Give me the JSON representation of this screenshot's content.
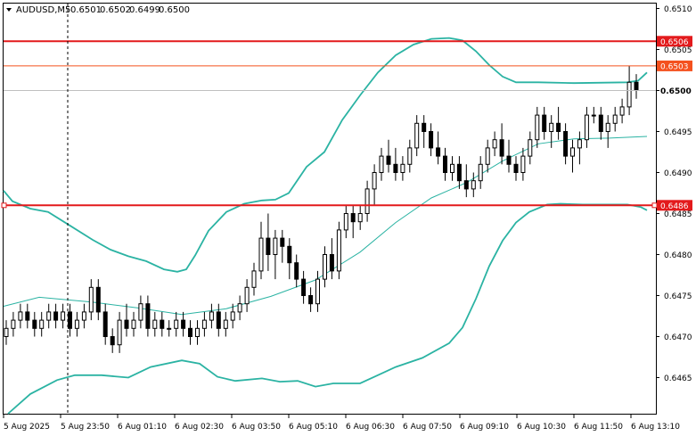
{
  "header": {
    "symbol": "AUDUSD,M5",
    "open": "0.6501",
    "high": "0.6502",
    "low": "0.6499",
    "close": "0.6500"
  },
  "chart_data": {
    "type": "candlestick",
    "symbol": "AUDUSD",
    "timeframe": "M5",
    "ylim": [
      0.64606,
      0.65106
    ],
    "y_ticks": [
      "0.6510",
      "0.6505",
      "0.6500",
      "0.6495",
      "0.6490",
      "0.6485",
      "0.6480",
      "0.6475",
      "0.6470",
      "0.6465"
    ],
    "x_ticks": [
      "5 Aug 2025",
      "5 Aug 23:50",
      "6 Aug 01:10",
      "6 Aug 02:30",
      "6 Aug 03:50",
      "6 Aug 05:10",
      "6 Aug 06:30",
      "6 Aug 07:50",
      "6 Aug 09:10",
      "6 Aug 10:30",
      "6 Aug 11:50",
      "6 Aug 13:10"
    ],
    "horizontal_levels": [
      {
        "label": "0.6506",
        "value": 0.6506,
        "color": "#e31a1c",
        "style": "thick"
      },
      {
        "label": "0.6503",
        "value": 0.6503,
        "color": "#f4511e",
        "style": "thin"
      },
      {
        "label": "0.6486",
        "value": 0.6486,
        "color": "#e31a1c",
        "style": "thick"
      }
    ],
    "current_price": {
      "label": "0.6500",
      "value": 0.65
    },
    "vertical_marker": "5 Aug 23:50",
    "indicators": [
      "Bollinger Bands (upper, middle, lower)"
    ],
    "bollinger_upper": [
      [
        0,
        0.64878
      ],
      [
        10,
        0.64865
      ],
      [
        30,
        0.64856
      ],
      [
        50,
        0.64852
      ],
      [
        75,
        0.64835
      ],
      [
        100,
        0.64818
      ],
      [
        120,
        0.64806
      ],
      [
        140,
        0.64798
      ],
      [
        160,
        0.64792
      ],
      [
        180,
        0.64782
      ],
      [
        195,
        0.64779
      ],
      [
        205,
        0.64782
      ],
      [
        215,
        0.64799
      ],
      [
        230,
        0.64829
      ],
      [
        250,
        0.64852
      ],
      [
        270,
        0.64862
      ],
      [
        290,
        0.64866
      ],
      [
        305,
        0.64867
      ],
      [
        320,
        0.64875
      ],
      [
        340,
        0.64907
      ],
      [
        360,
        0.64925
      ],
      [
        380,
        0.64964
      ],
      [
        400,
        0.64994
      ],
      [
        420,
        0.65022
      ],
      [
        440,
        0.65043
      ],
      [
        460,
        0.65056
      ],
      [
        480,
        0.65063
      ],
      [
        500,
        0.65064
      ],
      [
        515,
        0.65061
      ],
      [
        530,
        0.65048
      ],
      [
        545,
        0.65031
      ],
      [
        560,
        0.65017
      ],
      [
        575,
        0.6501
      ],
      [
        600,
        0.6501
      ],
      [
        640,
        0.65009
      ],
      [
        700,
        0.6501
      ],
      [
        712,
        0.65012
      ],
      [
        722,
        0.65022
      ]
    ],
    "bollinger_middle": [
      [
        0,
        0.64737
      ],
      [
        40,
        0.64748
      ],
      [
        100,
        0.64742
      ],
      [
        150,
        0.64735
      ],
      [
        200,
        0.64727
      ],
      [
        250,
        0.64734
      ],
      [
        300,
        0.64749
      ],
      [
        350,
        0.64769
      ],
      [
        400,
        0.64803
      ],
      [
        440,
        0.64839
      ],
      [
        480,
        0.64869
      ],
      [
        520,
        0.64888
      ],
      [
        560,
        0.64914
      ],
      [
        600,
        0.64935
      ],
      [
        640,
        0.64941
      ],
      [
        680,
        0.64942
      ],
      [
        722,
        0.64944
      ]
    ],
    "bollinger_lower": [
      [
        5,
        0.64606
      ],
      [
        30,
        0.6463
      ],
      [
        60,
        0.64647
      ],
      [
        80,
        0.64653
      ],
      [
        110,
        0.64653
      ],
      [
        140,
        0.6465
      ],
      [
        165,
        0.64663
      ],
      [
        200,
        0.64671
      ],
      [
        220,
        0.64667
      ],
      [
        240,
        0.64651
      ],
      [
        260,
        0.64646
      ],
      [
        290,
        0.64649
      ],
      [
        310,
        0.64645
      ],
      [
        330,
        0.64646
      ],
      [
        350,
        0.64639
      ],
      [
        370,
        0.64643
      ],
      [
        400,
        0.64643
      ],
      [
        420,
        0.64653
      ],
      [
        440,
        0.64663
      ],
      [
        470,
        0.64674
      ],
      [
        500,
        0.64692
      ],
      [
        515,
        0.64711
      ],
      [
        530,
        0.64746
      ],
      [
        545,
        0.64786
      ],
      [
        560,
        0.64817
      ],
      [
        575,
        0.64839
      ],
      [
        590,
        0.64852
      ],
      [
        610,
        0.64861
      ],
      [
        625,
        0.64862
      ],
      [
        650,
        0.64861
      ],
      [
        700,
        0.64861
      ],
      [
        715,
        0.64858
      ],
      [
        722,
        0.64854
      ]
    ],
    "candles": [
      [
        0.647,
        0.6472,
        0.6469,
        0.6471
      ],
      [
        0.6471,
        0.6473,
        0.647,
        0.6472
      ],
      [
        0.6472,
        0.6474,
        0.6471,
        0.6473
      ],
      [
        0.6473,
        0.6474,
        0.6471,
        0.6472
      ],
      [
        0.6472,
        0.6473,
        0.647,
        0.6471
      ],
      [
        0.6471,
        0.6473,
        0.647,
        0.6472
      ],
      [
        0.6472,
        0.6474,
        0.6471,
        0.6473
      ],
      [
        0.6473,
        0.6474,
        0.6471,
        0.6472
      ],
      [
        0.6472,
        0.6474,
        0.6471,
        0.6473
      ],
      [
        0.6473,
        0.6474,
        0.647,
        0.6471
      ],
      [
        0.6471,
        0.6473,
        0.647,
        0.6472
      ],
      [
        0.6472,
        0.6474,
        0.6471,
        0.6473
      ],
      [
        0.6473,
        0.6477,
        0.6472,
        0.6476
      ],
      [
        0.6476,
        0.6477,
        0.6472,
        0.6473
      ],
      [
        0.6473,
        0.6474,
        0.6469,
        0.647
      ],
      [
        0.647,
        0.6471,
        0.6468,
        0.6469
      ],
      [
        0.6469,
        0.6473,
        0.6468,
        0.6472
      ],
      [
        0.6472,
        0.6474,
        0.647,
        0.6471
      ],
      [
        0.6471,
        0.6473,
        0.647,
        0.6472
      ],
      [
        0.6472,
        0.6475,
        0.6471,
        0.6474
      ],
      [
        0.6474,
        0.6475,
        0.647,
        0.6471
      ],
      [
        0.6471,
        0.6473,
        0.647,
        0.6472
      ],
      [
        0.6472,
        0.6473,
        0.647,
        0.6471
      ],
      [
        0.6471,
        0.6472,
        0.647,
        0.6471
      ],
      [
        0.6471,
        0.6473,
        0.647,
        0.6472
      ],
      [
        0.6472,
        0.6473,
        0.647,
        0.6471
      ],
      [
        0.6471,
        0.6472,
        0.6469,
        0.647
      ],
      [
        0.647,
        0.6472,
        0.6469,
        0.6471
      ],
      [
        0.6471,
        0.6473,
        0.647,
        0.6472
      ],
      [
        0.6472,
        0.6474,
        0.6471,
        0.6473
      ],
      [
        0.6473,
        0.6474,
        0.647,
        0.6471
      ],
      [
        0.6471,
        0.6473,
        0.647,
        0.6472
      ],
      [
        0.6472,
        0.6474,
        0.6471,
        0.6473
      ],
      [
        0.6473,
        0.6475,
        0.6472,
        0.6474
      ],
      [
        0.6474,
        0.6477,
        0.6473,
        0.6476
      ],
      [
        0.6476,
        0.6479,
        0.6475,
        0.6478
      ],
      [
        0.6478,
        0.6484,
        0.6477,
        0.6482
      ],
      [
        0.6482,
        0.6485,
        0.6478,
        0.648
      ],
      [
        0.648,
        0.6483,
        0.6477,
        0.6482
      ],
      [
        0.6482,
        0.6483,
        0.6479,
        0.6481
      ],
      [
        0.6481,
        0.6482,
        0.6477,
        0.6479
      ],
      [
        0.6479,
        0.648,
        0.6476,
        0.6477
      ],
      [
        0.6477,
        0.6478,
        0.6474,
        0.6475
      ],
      [
        0.6475,
        0.6476,
        0.6473,
        0.6474
      ],
      [
        0.6474,
        0.6478,
        0.6473,
        0.6477
      ],
      [
        0.6477,
        0.6481,
        0.6476,
        0.648
      ],
      [
        0.648,
        0.6482,
        0.6477,
        0.6478
      ],
      [
        0.6478,
        0.6484,
        0.6477,
        0.6483
      ],
      [
        0.6483,
        0.6486,
        0.6482,
        0.6485
      ],
      [
        0.6485,
        0.6486,
        0.6482,
        0.6484
      ],
      [
        0.6484,
        0.6486,
        0.6483,
        0.6485
      ],
      [
        0.6485,
        0.6489,
        0.6484,
        0.6488
      ],
      [
        0.6488,
        0.6491,
        0.6486,
        0.649
      ],
      [
        0.649,
        0.6493,
        0.6489,
        0.6492
      ],
      [
        0.6492,
        0.6494,
        0.649,
        0.6491
      ],
      [
        0.6491,
        0.6493,
        0.6489,
        0.649
      ],
      [
        0.649,
        0.6492,
        0.6489,
        0.6491
      ],
      [
        0.6491,
        0.6494,
        0.649,
        0.6493
      ],
      [
        0.6493,
        0.6497,
        0.6492,
        0.6496
      ],
      [
        0.6496,
        0.6497,
        0.6493,
        0.6495
      ],
      [
        0.6495,
        0.6496,
        0.6492,
        0.6493
      ],
      [
        0.6493,
        0.6495,
        0.6491,
        0.6492
      ],
      [
        0.6492,
        0.6493,
        0.6489,
        0.649
      ],
      [
        0.649,
        0.6492,
        0.6489,
        0.6491
      ],
      [
        0.6491,
        0.6492,
        0.6488,
        0.6489
      ],
      [
        0.6489,
        0.6491,
        0.6487,
        0.6488
      ],
      [
        0.6488,
        0.649,
        0.6487,
        0.6489
      ],
      [
        0.6489,
        0.6492,
        0.6488,
        0.6491
      ],
      [
        0.6491,
        0.6494,
        0.649,
        0.6493
      ],
      [
        0.6493,
        0.6495,
        0.6492,
        0.6494
      ],
      [
        0.6494,
        0.6496,
        0.6491,
        0.6492
      ],
      [
        0.6492,
        0.6494,
        0.649,
        0.6491
      ],
      [
        0.6491,
        0.6492,
        0.6489,
        0.649
      ],
      [
        0.649,
        0.6493,
        0.6489,
        0.6492
      ],
      [
        0.6492,
        0.6495,
        0.6491,
        0.6494
      ],
      [
        0.6494,
        0.6498,
        0.6493,
        0.6497
      ],
      [
        0.6497,
        0.6498,
        0.6494,
        0.6495
      ],
      [
        0.6495,
        0.6497,
        0.6493,
        0.6496
      ],
      [
        0.6496,
        0.6498,
        0.6494,
        0.6495
      ],
      [
        0.6495,
        0.6496,
        0.6491,
        0.6492
      ],
      [
        0.6492,
        0.6494,
        0.649,
        0.6493
      ],
      [
        0.6493,
        0.6495,
        0.6491,
        0.6494
      ],
      [
        0.6494,
        0.6498,
        0.6493,
        0.6497
      ],
      [
        0.6497,
        0.6498,
        0.6496,
        0.6497
      ],
      [
        0.6497,
        0.6498,
        0.6494,
        0.6495
      ],
      [
        0.6495,
        0.6497,
        0.6493,
        0.6496
      ],
      [
        0.6496,
        0.6498,
        0.6495,
        0.6497
      ],
      [
        0.6497,
        0.6499,
        0.6496,
        0.6498
      ],
      [
        0.6498,
        0.6503,
        0.6497,
        0.6501
      ],
      [
        0.6501,
        0.6502,
        0.6499,
        0.65
      ]
    ]
  }
}
